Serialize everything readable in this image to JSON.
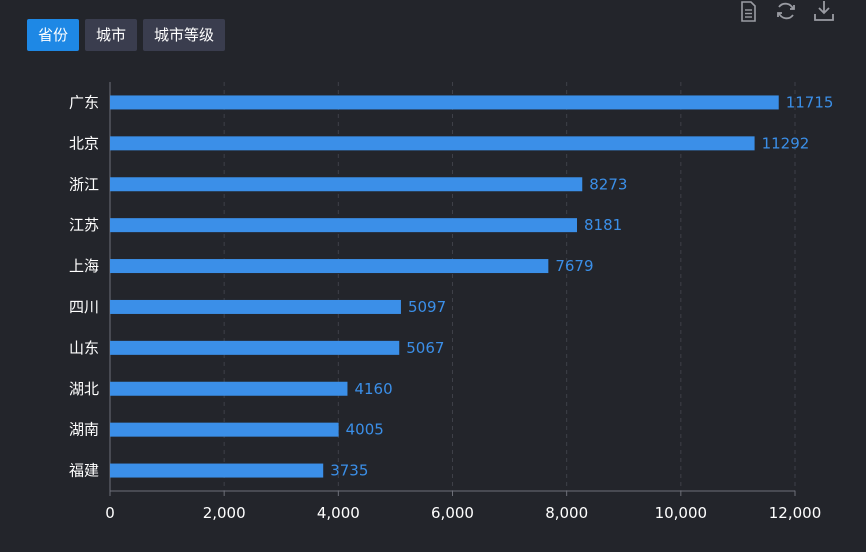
{
  "tabs": [
    {
      "label": "省份",
      "active": true
    },
    {
      "label": "城市",
      "active": false
    },
    {
      "label": "城市等级",
      "active": false
    }
  ],
  "toolbox": {
    "icons": [
      "data-view-icon",
      "refresh-icon",
      "download-icon"
    ],
    "color": "#9a9ca3"
  },
  "colors": {
    "bar": "#3b8fe8",
    "value_label": "#3b8fe8",
    "active_tab": "#1e88e5",
    "inactive_tab": "#3a3d4e",
    "background": "#23252b"
  },
  "chart_data": {
    "type": "bar",
    "orientation": "horizontal",
    "categories": [
      "广东",
      "北京",
      "浙江",
      "江苏",
      "上海",
      "四川",
      "山东",
      "湖北",
      "湖南",
      "福建"
    ],
    "values": [
      11715,
      11292,
      8273,
      8181,
      7679,
      5097,
      5067,
      4160,
      4005,
      3735
    ],
    "value_labels": [
      "11715",
      "11292",
      "8273",
      "8181",
      "7679",
      "5097",
      "5067",
      "4160",
      "4005",
      "3735"
    ],
    "xlim": [
      0,
      12000
    ],
    "xticks": [
      0,
      2000,
      4000,
      6000,
      8000,
      10000,
      12000
    ],
    "xtick_labels": [
      "0",
      "2,000",
      "4,000",
      "6,000",
      "8,000",
      "10,000",
      "12,000"
    ],
    "grid": true,
    "title": "",
    "xlabel": "",
    "ylabel": ""
  }
}
